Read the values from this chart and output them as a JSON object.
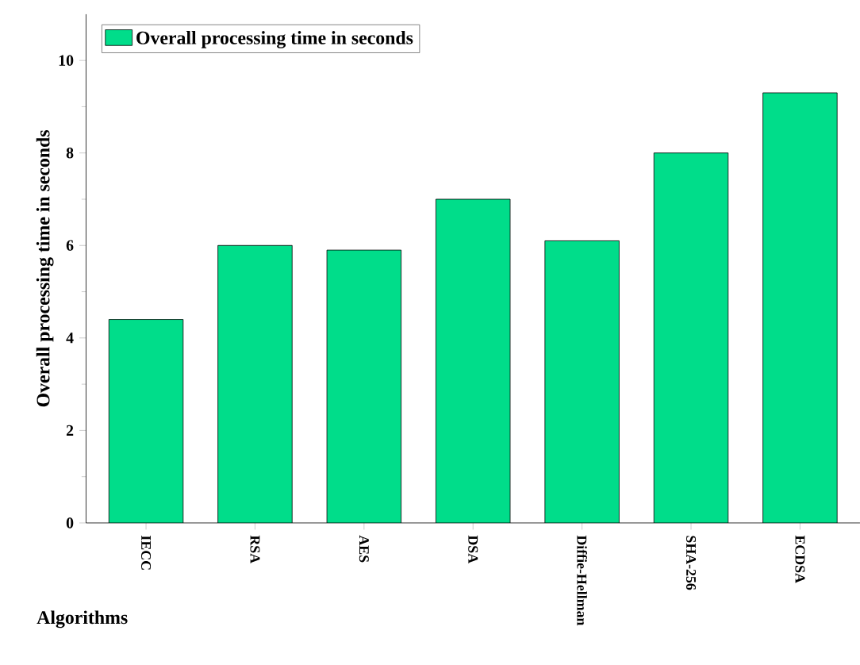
{
  "chart_data": {
    "type": "bar",
    "xlabel": "Algorithms",
    "ylabel": "Overall processing time in seconds",
    "categories": [
      "IECC",
      "RSA",
      "AES",
      "DSA",
      "Diffie-Hellman",
      "SHA-256",
      "ECDSA"
    ],
    "series": [
      {
        "name": "Overall processing time in seconds",
        "color": "#00dd8a",
        "values": [
          4.4,
          6.0,
          5.9,
          7.0,
          6.1,
          8.0,
          9.3
        ]
      }
    ],
    "ylim": [
      0,
      11
    ],
    "yticks": [
      0,
      2,
      4,
      6,
      8,
      10
    ],
    "legend": "top left",
    "grid": false
  }
}
